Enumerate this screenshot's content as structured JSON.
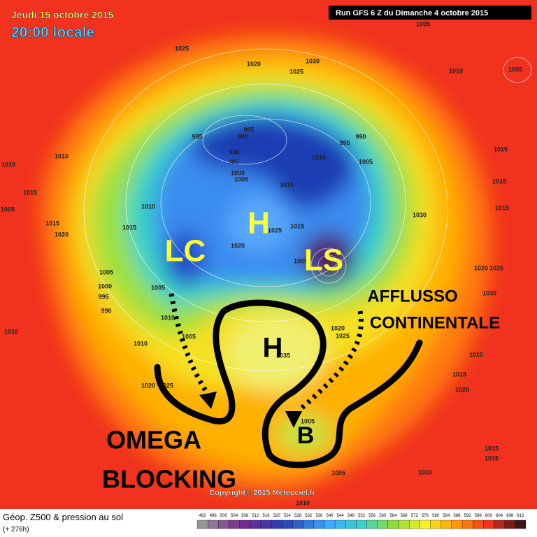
{
  "header": {
    "date": "Jeudi 15 octobre 2015",
    "time": "20:00 locale",
    "run": "Run GFS 6 Z du Dimanche 4 octobre 2015"
  },
  "annotations": {
    "low_canada": "LC",
    "high_pole": "H",
    "low_siberia": "LS",
    "high_europe": "H",
    "low_med": "B",
    "flow_line1": "AFFLUSSO",
    "flow_line2": "CONTINENTALE",
    "block_line1": "OMEGA",
    "block_line2": "BLOCKING"
  },
  "isobar_labels": [
    "1005",
    "1025",
    "1020",
    "1030",
    "1025",
    "1010",
    "1005",
    "985",
    "985",
    "980",
    "990",
    "995",
    "990",
    "995",
    "1010",
    "1005",
    "1000",
    "1005",
    "1010",
    "1015",
    "1010",
    "1010",
    "1015",
    "1015",
    "1015",
    "1030",
    "1010",
    "1015",
    "1015",
    "1020",
    "1015",
    "1025",
    "1020",
    "1005",
    "1020",
    "1025",
    "1005",
    "1005",
    "1000",
    "995",
    "990",
    "1005",
    "1030",
    "1010",
    "1005",
    "1010",
    "1020",
    "1025",
    "1035",
    "1015",
    "1025",
    "1020",
    "1015",
    "1020",
    "1005",
    "1005",
    "1010",
    "1015",
    "1015",
    "1010",
    "1010"
  ],
  "copyright": "Copyright© 2015 Meteociel.fr",
  "legend": {
    "title": "Géop. Z500 & pression au sol",
    "lead": "(+ 276h)",
    "scale": [
      492,
      496,
      500,
      504,
      508,
      512,
      516,
      520,
      524,
      528,
      532,
      536,
      540,
      544,
      548,
      552,
      556,
      560,
      564,
      568,
      572,
      576,
      580,
      584,
      588,
      592,
      596,
      600,
      604,
      608,
      612
    ]
  }
}
